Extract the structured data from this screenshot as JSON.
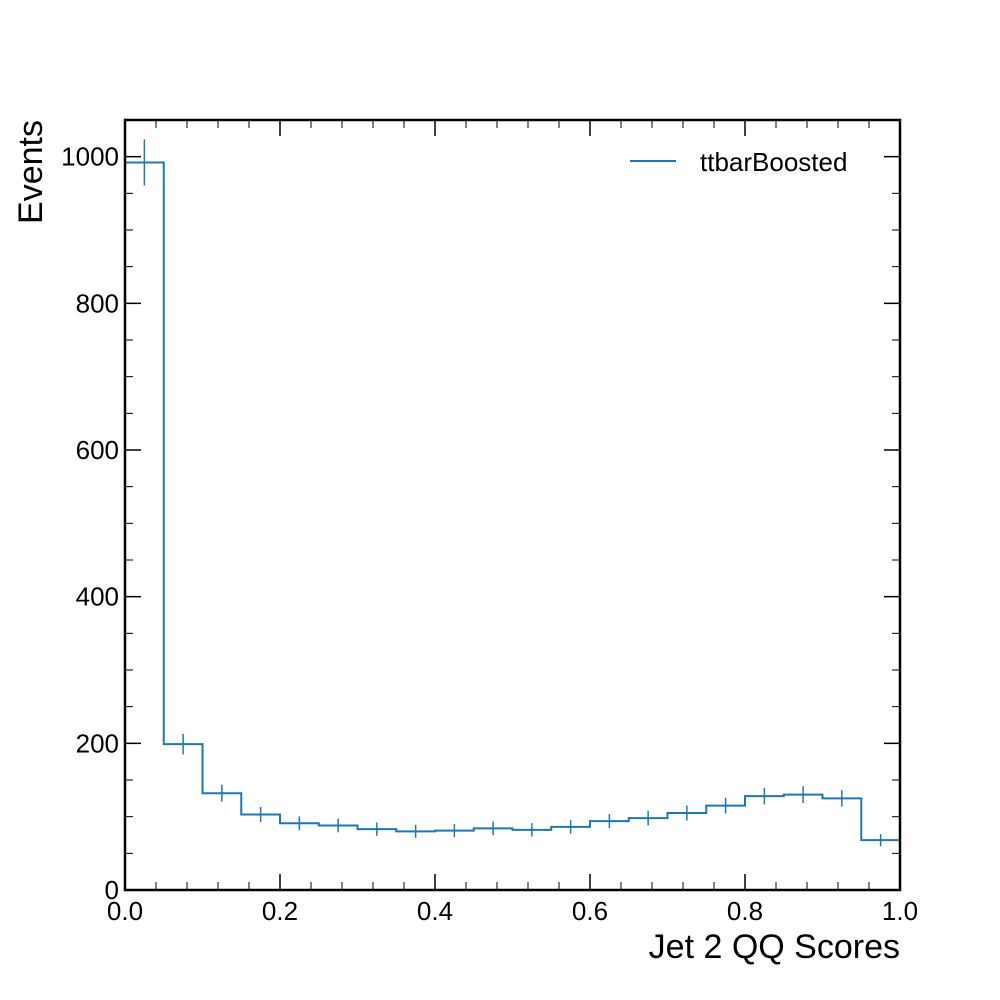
{
  "chart_data": {
    "type": "histogram-step",
    "title": "",
    "xlabel": "Jet 2 QQ Scores",
    "ylabel": "Events",
    "xlim": [
      0.0,
      1.0
    ],
    "ylim": [
      0,
      1050
    ],
    "x_ticks": [
      "0.0",
      "0.2",
      "0.4",
      "0.6",
      "0.8",
      "1.0"
    ],
    "y_ticks": [
      "0",
      "200",
      "400",
      "600",
      "800",
      "1000"
    ],
    "bin_edges": [
      0.0,
      0.05,
      0.1,
      0.15,
      0.2,
      0.25,
      0.3,
      0.35,
      0.4,
      0.45,
      0.5,
      0.55,
      0.6,
      0.65,
      0.7,
      0.75,
      0.8,
      0.85,
      0.9,
      0.95,
      1.0
    ],
    "series": [
      {
        "name": "ttbarBoosted",
        "color": "#1f77b4",
        "values": [
          992,
          199,
          132,
          103,
          91,
          88,
          83,
          80,
          81,
          84,
          82,
          86,
          94,
          98,
          105,
          115,
          128,
          130,
          125,
          68
        ]
      }
    ],
    "legend": {
      "position": "top-right"
    },
    "grid": false
  }
}
